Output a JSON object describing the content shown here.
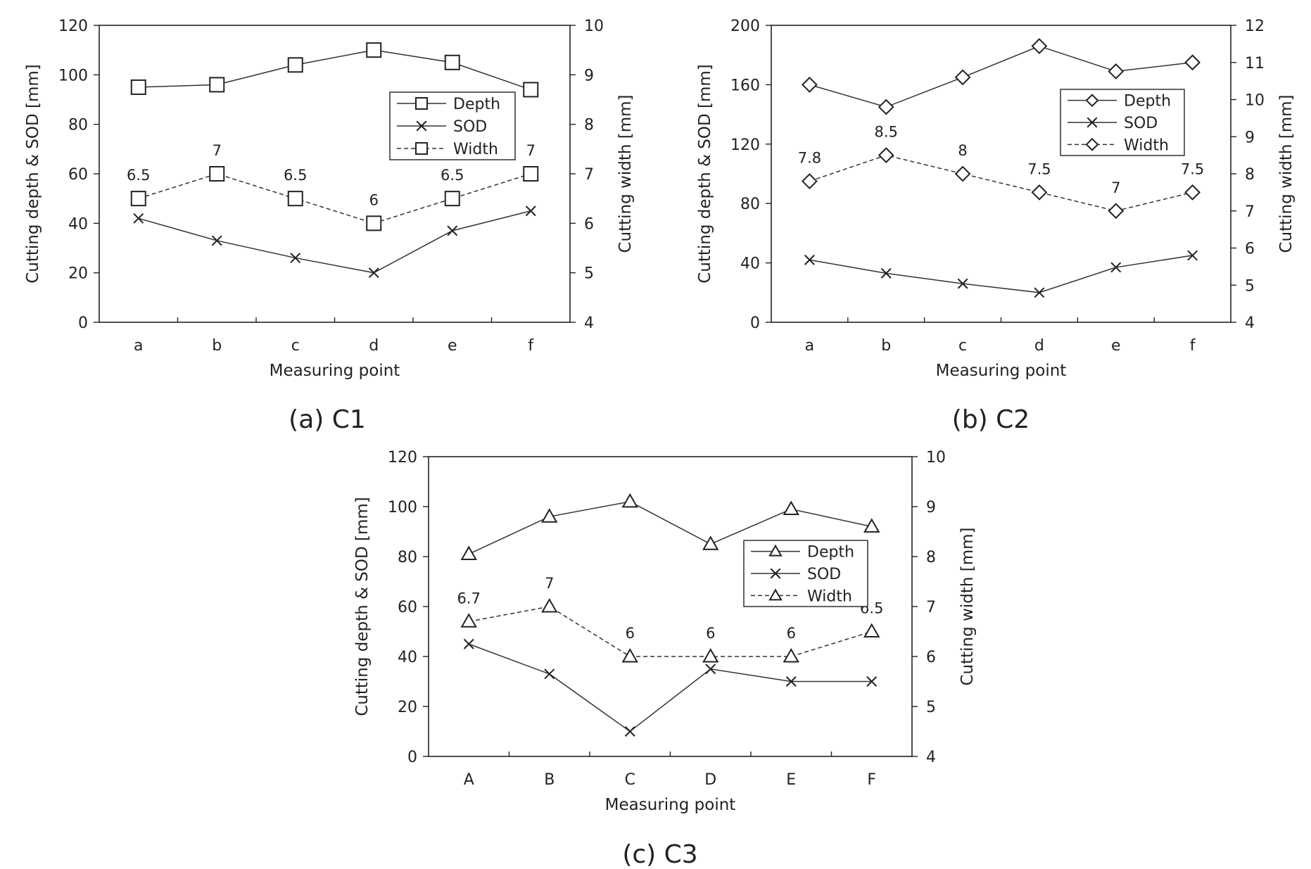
{
  "figure": {
    "captions": [
      "(a) C1",
      "(b) C2",
      "(c) C3"
    ]
  },
  "chart_data": [
    {
      "id": "c1",
      "type": "line",
      "caption": "(a) C1",
      "marker": "square",
      "categories": [
        "a",
        "b",
        "c",
        "d",
        "e",
        "f"
      ],
      "xlabel": "Measuring point",
      "ylabel": "Cutting depth & SOD [mm]",
      "y2label": "Cutting width [mm]",
      "ylim": [
        0,
        120
      ],
      "yticks": [
        0,
        20,
        40,
        60,
        80,
        100,
        120
      ],
      "y2lim": [
        4,
        10
      ],
      "y2ticks": [
        4,
        5,
        6,
        7,
        8,
        9,
        10
      ],
      "legend_position": "upper-right",
      "series": [
        {
          "name": "Depth",
          "axis": "left",
          "line": "solid",
          "marker": "square",
          "values": [
            95,
            96,
            104,
            110,
            105,
            94
          ]
        },
        {
          "name": "SOD",
          "axis": "left",
          "line": "solid",
          "marker": "x",
          "values": [
            42,
            33,
            26,
            20,
            37,
            45
          ]
        },
        {
          "name": "Width",
          "axis": "right",
          "line": "dashed",
          "marker": "square",
          "values": [
            6.5,
            7,
            6.5,
            6,
            6.5,
            7
          ],
          "data_labels": [
            "6.5",
            "7",
            "6.5",
            "6",
            "6.5",
            "7"
          ]
        }
      ]
    },
    {
      "id": "c2",
      "type": "line",
      "caption": "(b) C2",
      "marker": "diamond",
      "categories": [
        "a",
        "b",
        "c",
        "d",
        "e",
        "f"
      ],
      "xlabel": "Measuring point",
      "ylabel": "Cutting depth & SOD [mm]",
      "y2label": "Cutting width [mm]",
      "ylim": [
        0,
        200
      ],
      "yticks": [
        0,
        40,
        80,
        120,
        160,
        200
      ],
      "y2lim": [
        4,
        12
      ],
      "y2ticks": [
        4,
        5,
        6,
        7,
        8,
        9,
        10,
        11,
        12
      ],
      "legend_position": "upper-right",
      "series": [
        {
          "name": "Depth",
          "axis": "left",
          "line": "solid",
          "marker": "diamond",
          "values": [
            160,
            145,
            165,
            186,
            169,
            175
          ]
        },
        {
          "name": "SOD",
          "axis": "left",
          "line": "solid",
          "marker": "x",
          "values": [
            42,
            33,
            26,
            20,
            37,
            45
          ]
        },
        {
          "name": "Width",
          "axis": "right",
          "line": "dashed",
          "marker": "diamond",
          "values": [
            7.8,
            8.5,
            8,
            7.5,
            7,
            7.5
          ],
          "data_labels": [
            "7.8",
            "8.5",
            "8",
            "7.5",
            "7",
            "7.5"
          ]
        }
      ]
    },
    {
      "id": "c3",
      "type": "line",
      "caption": "(c) C3",
      "marker": "triangle",
      "categories": [
        "A",
        "B",
        "C",
        "D",
        "E",
        "F"
      ],
      "xlabel": "Measuring point",
      "ylabel": "Cutting depth & SOD [mm]",
      "y2label": "Cutting width [mm]",
      "ylim": [
        0,
        120
      ],
      "yticks": [
        0,
        20,
        40,
        60,
        80,
        100,
        120
      ],
      "y2lim": [
        4,
        10
      ],
      "y2ticks": [
        4,
        5,
        6,
        7,
        8,
        9,
        10
      ],
      "legend_position": "upper-right",
      "series": [
        {
          "name": "Depth",
          "axis": "left",
          "line": "solid",
          "marker": "triangle",
          "values": [
            81,
            96,
            102,
            85,
            99,
            92
          ]
        },
        {
          "name": "SOD",
          "axis": "left",
          "line": "solid",
          "marker": "x",
          "values": [
            45,
            33,
            10,
            35,
            30,
            30
          ]
        },
        {
          "name": "Width",
          "axis": "right",
          "line": "dashed",
          "marker": "triangle",
          "values": [
            6.7,
            7,
            6,
            6,
            6,
            6.5
          ],
          "data_labels": [
            "6.7",
            "7",
            "6",
            "6",
            "6",
            "6.5"
          ]
        }
      ]
    }
  ]
}
